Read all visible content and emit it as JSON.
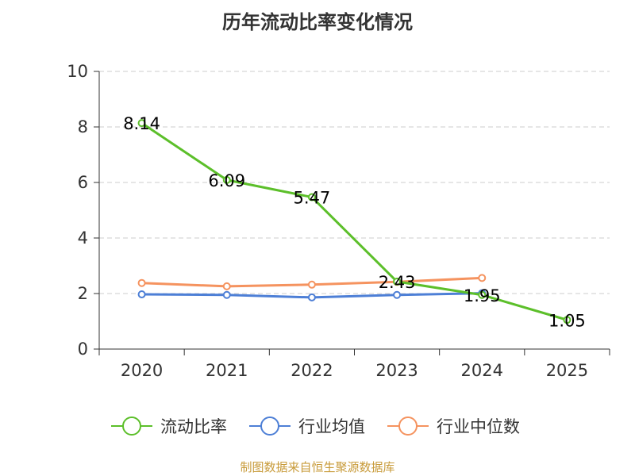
{
  "chart_data": {
    "type": "line",
    "title": "历年流动比率变化情况",
    "categories": [
      "2020",
      "2021",
      "2022",
      "2023",
      "2024",
      "2025"
    ],
    "ylim": [
      0,
      10
    ],
    "yticks": [
      "0",
      "2",
      "4",
      "6",
      "8",
      "10"
    ],
    "grid": true,
    "legend_position": "bottom",
    "series": [
      {
        "name": "流动比率",
        "color": "#5cbf2a",
        "values": [
          8.14,
          6.09,
          5.47,
          2.43,
          1.95,
          1.05
        ],
        "labels": [
          "8.14",
          "6.09",
          "5.47",
          "2.43",
          "1.95",
          "1.05"
        ]
      },
      {
        "name": "行业均值",
        "color": "#4d7fd6",
        "values": [
          1.97,
          1.95,
          1.86,
          1.95,
          2.01,
          null
        ]
      },
      {
        "name": "行业中位数",
        "color": "#f5935f",
        "values": [
          2.38,
          2.26,
          2.32,
          2.42,
          2.56,
          null
        ]
      }
    ]
  },
  "footer": {
    "source": "制图数据来自恒生聚源数据库"
  }
}
